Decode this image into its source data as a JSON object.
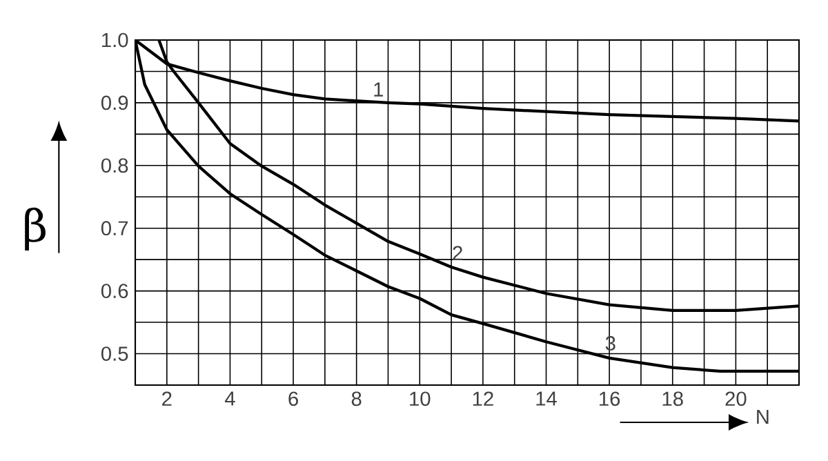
{
  "chart_data": {
    "type": "line",
    "xlabel": "N",
    "ylabel": "β",
    "xlim": [
      1,
      22
    ],
    "ylim": [
      0.45,
      1.0
    ],
    "xticks": [
      {
        "value": 1,
        "label": null
      },
      2,
      {
        "value": 3,
        "label": null
      },
      4,
      {
        "value": 5,
        "label": null
      },
      6,
      {
        "value": 7,
        "label": null
      },
      8,
      {
        "value": 9,
        "label": null
      },
      10,
      {
        "value": 11,
        "label": null
      },
      12,
      {
        "value": 13,
        "label": null
      },
      14,
      {
        "value": 15,
        "label": null
      },
      16,
      {
        "value": 17,
        "label": null
      },
      18,
      {
        "value": 19,
        "label": null
      },
      20,
      {
        "value": 21,
        "label": null
      },
      {
        "value": 22,
        "label": null
      }
    ],
    "yticks": [
      {
        "value": 0.45,
        "label": null
      },
      0.5,
      {
        "value": 0.55,
        "label": null
      },
      0.6,
      {
        "value": 0.65,
        "label": null
      },
      0.7,
      {
        "value": 0.75,
        "label": null
      },
      0.8,
      {
        "value": 0.85,
        "label": null
      },
      0.9,
      {
        "value": 0.95,
        "label": null
      },
      {
        "value": 1,
        "label": "1.0"
      }
    ],
    "grid": true,
    "legend": false,
    "marker": "none",
    "line_style": "solid",
    "series": [
      {
        "name": "1",
        "color": "#000000",
        "x": [
          1,
          2,
          3,
          4,
          5,
          6,
          7,
          8,
          9,
          10,
          12,
          14,
          16,
          18,
          20,
          22
        ],
        "values": [
          1.0,
          0.962,
          0.948,
          0.935,
          0.923,
          0.913,
          0.906,
          0.903,
          0.9,
          0.898,
          0.891,
          0.886,
          0.881,
          0.878,
          0.875,
          0.871
        ]
      },
      {
        "name": "2",
        "color": "#000000",
        "x": [
          1.75,
          2,
          2.2,
          3,
          4,
          5,
          6,
          7,
          8,
          9,
          10,
          11,
          12,
          14,
          16,
          18,
          20,
          22
        ],
        "values": [
          1.0,
          0.965,
          0.951,
          0.9,
          0.835,
          0.799,
          0.77,
          0.737,
          0.708,
          0.679,
          0.659,
          0.638,
          0.622,
          0.596,
          0.578,
          0.569,
          0.569,
          0.576
        ]
      },
      {
        "name": "3",
        "color": "#000000",
        "x": [
          1,
          1.3,
          2,
          3,
          4,
          5,
          6,
          7,
          8,
          9,
          10,
          11,
          12,
          14,
          16,
          18,
          19.5,
          22
        ],
        "values": [
          1.0,
          0.929,
          0.857,
          0.799,
          0.755,
          0.722,
          0.69,
          0.657,
          0.632,
          0.607,
          0.588,
          0.562,
          0.548,
          0.519,
          0.493,
          0.478,
          0.472,
          0.472
        ]
      }
    ]
  }
}
